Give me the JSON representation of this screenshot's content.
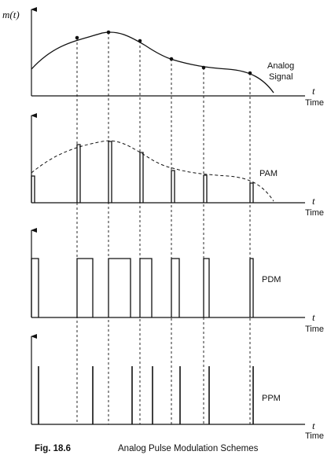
{
  "diagram": {
    "y_axis_label": "m(t)",
    "panels": [
      {
        "id": "analog",
        "label_lines": [
          "Analog",
          "Signal"
        ],
        "axis_var": "t",
        "axis_unit": "Time"
      },
      {
        "id": "pam",
        "label_lines": [
          "PAM"
        ],
        "axis_var": "t",
        "axis_unit": "Time"
      },
      {
        "id": "pdm",
        "label_lines": [
          "PDM"
        ],
        "axis_var": "t",
        "axis_unit": "Time"
      },
      {
        "id": "ppm",
        "label_lines": [
          "PPM"
        ],
        "axis_var": "t",
        "axis_unit": "Time"
      }
    ],
    "caption": {
      "figure_number": "Fig. 18.6",
      "title": "Analog Pulse Modulation Schemes"
    }
  },
  "colors": {
    "ink": "#111111",
    "background": "#ffffff"
  }
}
